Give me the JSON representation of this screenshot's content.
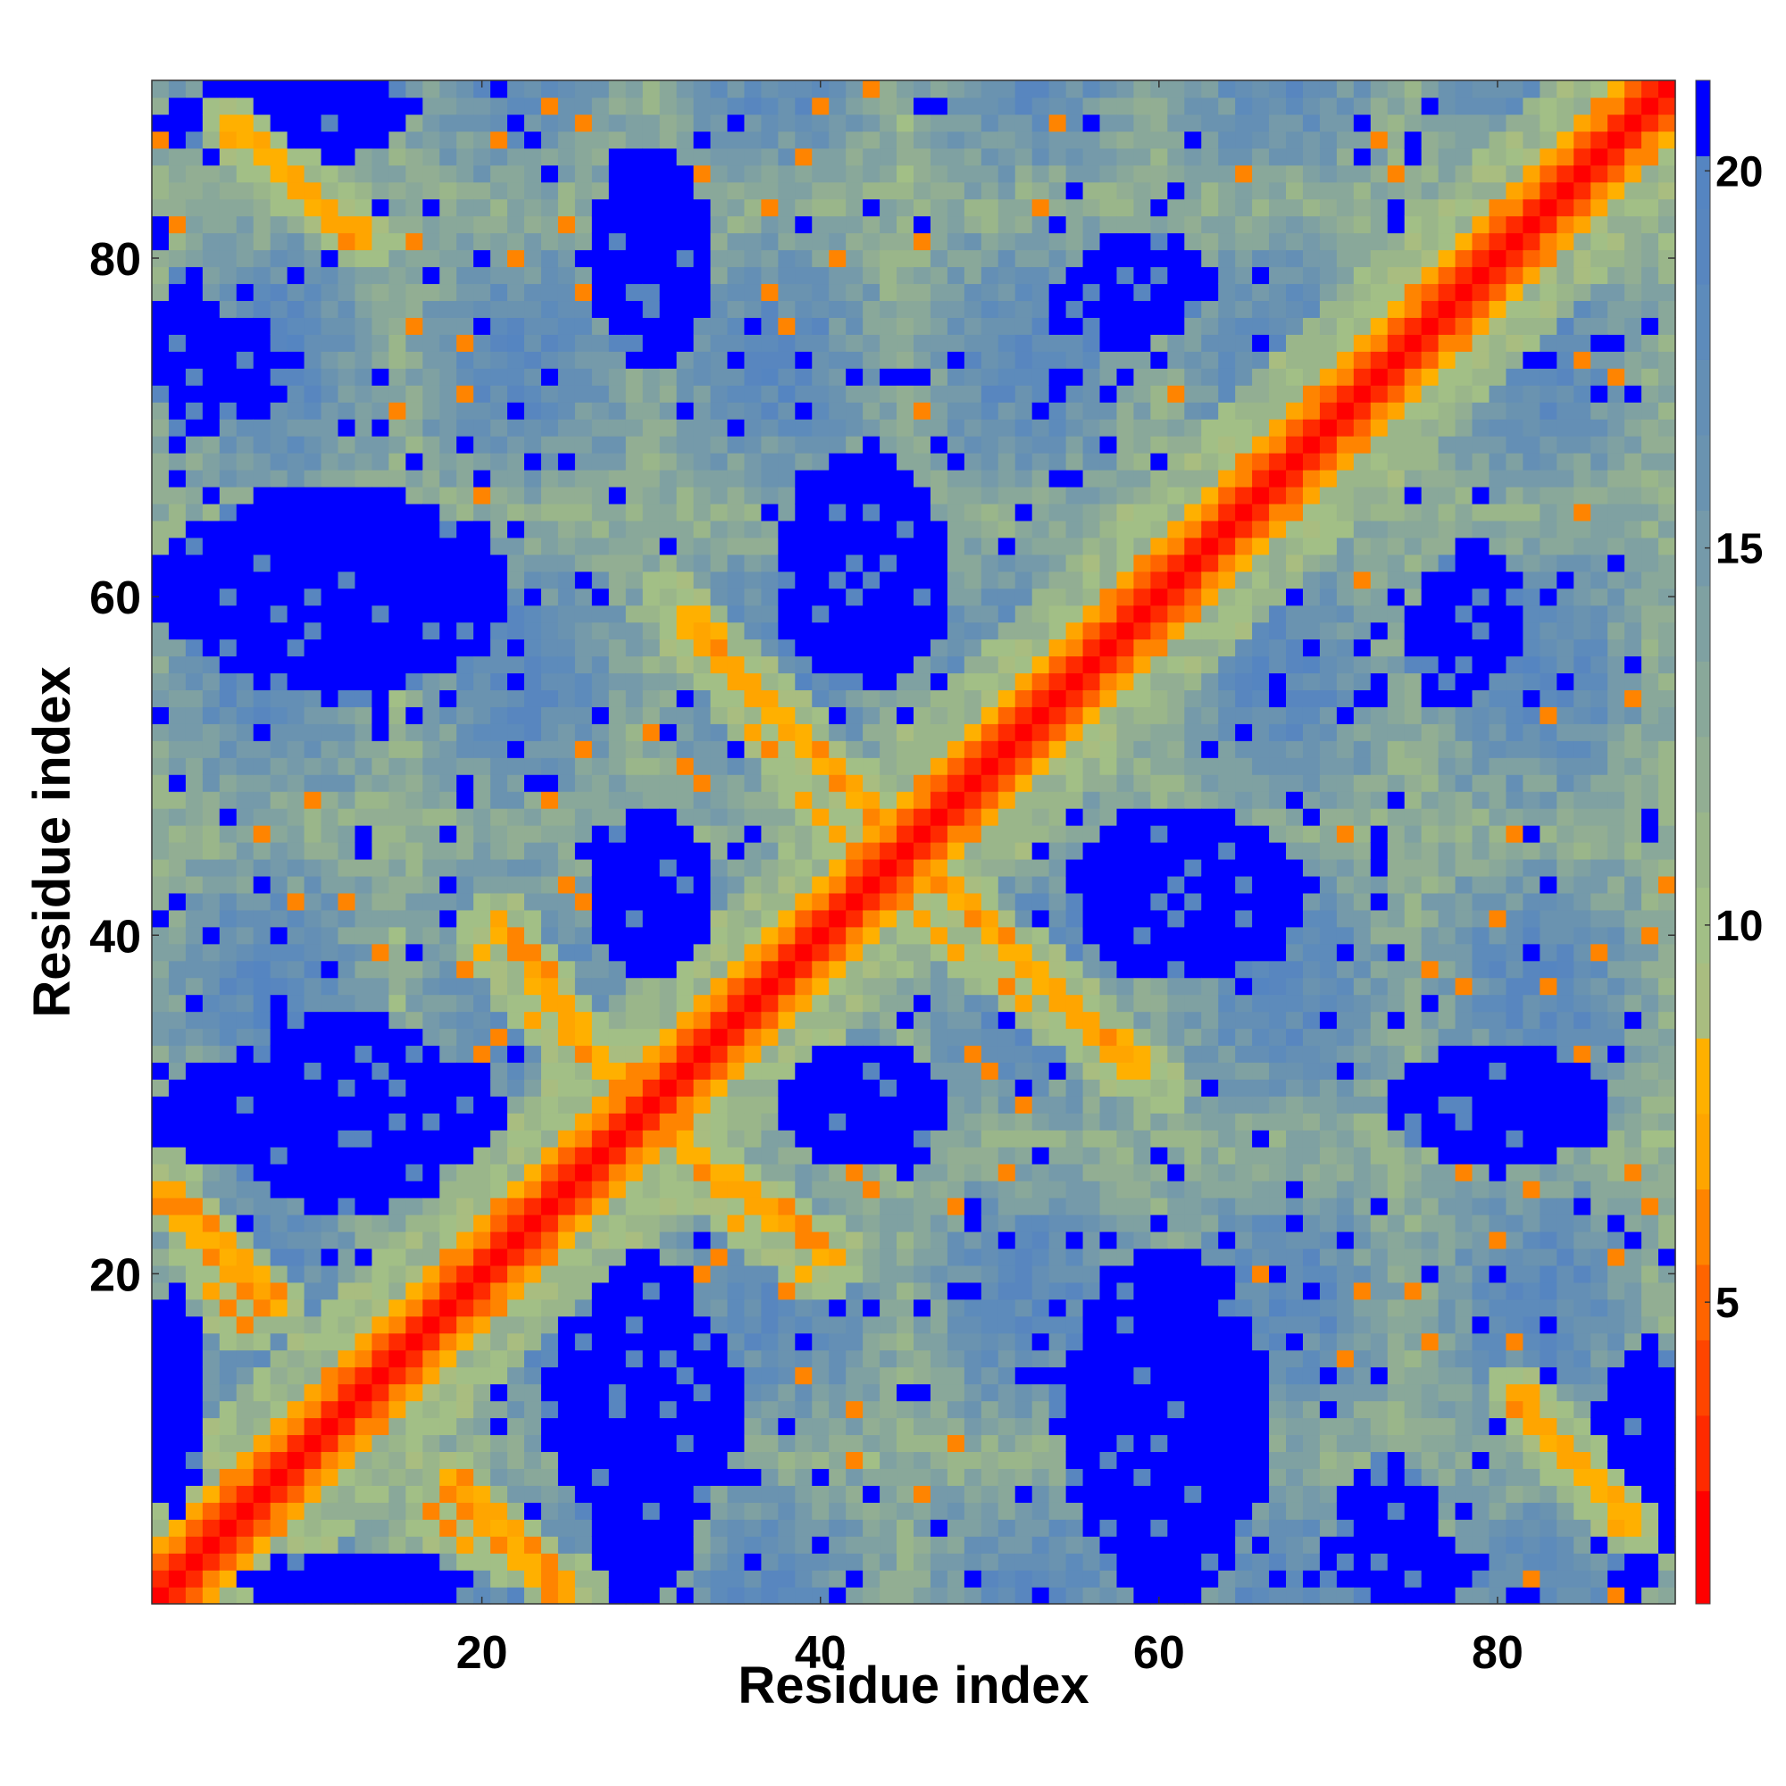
{
  "chart_data": {
    "type": "heatmap",
    "title": "",
    "xlabel": "Residue index",
    "ylabel": "Residue index",
    "n_residues": 90,
    "xlim": [
      0.5,
      90.5
    ],
    "ylim": [
      0.5,
      90.5
    ],
    "x_ticks": [
      20,
      40,
      60,
      80
    ],
    "y_ticks": [
      20,
      40,
      60,
      80
    ],
    "colorbar": {
      "range": [
        1,
        21.2
      ],
      "ticks": [
        5,
        10,
        15,
        20
      ],
      "levels": [
        {
          "upper": 2.5,
          "color": "#ff0000"
        },
        {
          "upper": 3.5,
          "color": "#ff2a00"
        },
        {
          "upper": 4.5,
          "color": "#ff4500"
        },
        {
          "upper": 5.5,
          "color": "#ff6400"
        },
        {
          "upper": 6.5,
          "color": "#ff8400"
        },
        {
          "upper": 7.5,
          "color": "#ffa500"
        },
        {
          "upper": 8.5,
          "color": "#ffb000"
        },
        {
          "upper": 9.5,
          "color": "#a9bd80"
        },
        {
          "upper": 10.5,
          "color": "#a2bf86"
        },
        {
          "upper": 11.5,
          "color": "#9ab68a"
        },
        {
          "upper": 12.5,
          "color": "#92ae93"
        },
        {
          "upper": 13.5,
          "color": "#89a89a"
        },
        {
          "upper": 14.5,
          "color": "#7fa1a2"
        },
        {
          "upper": 15.5,
          "color": "#759aaa"
        },
        {
          "upper": 16.5,
          "color": "#6a93b0"
        },
        {
          "upper": 17.5,
          "color": "#648fb5"
        },
        {
          "upper": 18.5,
          "color": "#5d8bbb"
        },
        {
          "upper": 19.5,
          "color": "#5886bf"
        },
        {
          "upper": 20.2,
          "color": "#5585c1"
        },
        {
          "upper": 21.2,
          "color": "#0000ff"
        }
      ]
    },
    "description_values": "Symmetric residue-residue distance map (Å). Diagonal band ~1-5 (red), off-diagonal crossing contacts ~6-9 (orange), background 10-20 (green to steel blue), regions >20 (blue).",
    "blue_regions": [
      {
        "x": [
          6,
          18
        ],
        "y": [
          24,
          35
        ]
      },
      {
        "x": [
          26,
          33
        ],
        "y": [
          1,
          21
        ]
      },
      {
        "x": [
          55,
          66
        ],
        "y": [
          1,
          21
        ]
      },
      {
        "x": [
          27,
          33
        ],
        "y": [
          38,
          47
        ]
      },
      {
        "x": [
          38,
          46
        ],
        "y": [
          28,
          33
        ]
      },
      {
        "x": [
          7,
          18
        ],
        "y": [
          54,
          66
        ]
      },
      {
        "x": [
          38,
          47
        ],
        "y": [
          55,
          66
        ]
      },
      {
        "x": [
          56,
          68
        ],
        "y": [
          38,
          47
        ]
      },
      {
        "x": [
          74,
          86
        ],
        "y": [
          27,
          33
        ]
      },
      {
        "x": [
          27,
          33
        ],
        "y": [
          74,
          86
        ]
      },
      {
        "x": [
          55,
          63
        ],
        "y": [
          76,
          81
        ]
      },
      {
        "x": [
          75,
          79
        ],
        "y": [
          54,
          61
        ]
      },
      {
        "x": [
          1,
          3
        ],
        "y": [
          6,
          19
        ]
      },
      {
        "x": [
          6,
          19
        ],
        "y": [
          1,
          2
        ]
      },
      {
        "x": [
          1,
          4
        ],
        "y": [
          70,
          79
        ]
      },
      {
        "x": [
          7,
          16
        ],
        "y": [
          88,
          90
        ]
      },
      {
        "x": [
          71,
          76
        ],
        "y": [
          1,
          9
        ]
      },
      {
        "x": [
          86,
          90
        ],
        "y": [
          1,
          15
        ]
      }
    ],
    "orange_contact_lines": [
      {
        "from": [
          1,
          25
        ],
        "to": [
          8,
          18
        ]
      },
      {
        "from": [
          21,
          41
        ],
        "to": [
          28,
          31
        ]
      },
      {
        "from": [
          31,
          27
        ],
        "to": [
          40,
          20
        ]
      },
      {
        "from": [
          32,
          59
        ],
        "to": [
          46,
          44
        ]
      },
      {
        "from": [
          45,
          42
        ],
        "to": [
          60,
          31
        ]
      },
      {
        "from": [
          5,
          88
        ],
        "to": [
          13,
          81
        ]
      },
      {
        "from": [
          17,
          6
        ],
        "to": [
          26,
          1
        ]
      }
    ]
  }
}
